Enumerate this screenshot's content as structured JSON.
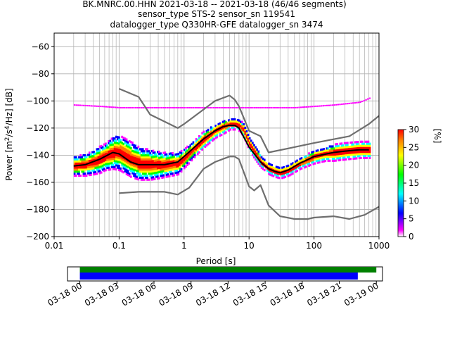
{
  "figure": {
    "title_lines": [
      "BK.MNRC.00.HHN   2021-03-18 -- 2021-03-18  (46/46 segments)",
      "sensor_type STS-2 sensor_sn 119541",
      "datalogger_type Q330HR-GFE datalogger_sn 3474"
    ]
  },
  "chart_data": [
    {
      "type": "heatmap",
      "title": "BK.MNRC.00.HHN   2021-03-18 -- 2021-03-18  (46/46 segments)",
      "xlabel": "Period [s]",
      "ylabel": "Power [m²/s⁴/Hz] [dB]",
      "x_scale": "log",
      "xlim": [
        0.01,
        1000
      ],
      "ylim": [
        -200,
        -50
      ],
      "x_ticks": [
        0.01,
        0.1,
        1,
        10,
        100,
        1000
      ],
      "x_tick_labels": [
        "0.01",
        "0.1",
        "1",
        "10",
        "100",
        "1000"
      ],
      "y_ticks": [
        -200,
        -180,
        -160,
        -140,
        -120,
        -100,
        -80,
        -60
      ],
      "y_tick_labels": [
        "−200",
        "−180",
        "−160",
        "−140",
        "−120",
        "−100",
        "−80",
        "−60"
      ],
      "grid": true,
      "colorbar": {
        "label": "[%]",
        "range": [
          0,
          30
        ],
        "ticks": [
          0,
          5,
          10,
          15,
          20,
          25,
          30
        ],
        "tick_labels": [
          "0",
          "5",
          "10",
          "15",
          "20",
          "25",
          "30"
        ],
        "colors": [
          "#ffffff",
          "#ff00ff",
          "#0000ff",
          "#00ffff",
          "#00ff00",
          "#ffff00",
          "#ff8000",
          "#ff0000"
        ]
      },
      "mean_curve": {
        "x": [
          0.02,
          0.03,
          0.05,
          0.08,
          0.1,
          0.15,
          0.2,
          0.3,
          0.5,
          0.8,
          1,
          2,
          3,
          4,
          5,
          6,
          7,
          10,
          15,
          20,
          25,
          30,
          40,
          60,
          100,
          200,
          300,
          500,
          700
        ],
        "y": [
          -148,
          -147,
          -143,
          -138,
          -139,
          -145,
          -147,
          -147,
          -147,
          -145,
          -141,
          -128,
          -122,
          -119,
          -118,
          -118,
          -120,
          -134,
          -145,
          -150,
          -152,
          -153,
          -151,
          -146,
          -141,
          -138,
          -137,
          -136,
          -136
        ]
      },
      "noise_models": [
        {
          "x": [
            0.1,
            0.2,
            0.3,
            0.8,
            1,
            3,
            5,
            6,
            7,
            10,
            15,
            20,
            40,
            100,
            350,
            700,
            1000
          ],
          "y": [
            -91,
            -97,
            -110,
            -120,
            -117,
            -100,
            -96,
            -99,
            -104,
            -122,
            -126,
            -138,
            -135,
            -131,
            -126,
            -117,
            -111
          ]
        },
        {
          "x": [
            0.1,
            0.2,
            0.3,
            0.5,
            0.8,
            1.2,
            2,
            3,
            5,
            6,
            7,
            10,
            12,
            15,
            20,
            30,
            50,
            80,
            100,
            200,
            350,
            600,
            1000
          ],
          "y": [
            -168,
            -167,
            -167,
            -167,
            -169,
            -164,
            -150,
            -145,
            -141,
            -141,
            -143,
            -163,
            -166,
            -162,
            -177,
            -185,
            -187,
            -187,
            -186,
            -185,
            -187,
            -184,
            -178
          ]
        }
      ],
      "density": {
        "x": [
          0.02,
          0.03,
          0.04,
          0.05,
          0.06,
          0.08,
          0.1,
          0.15,
          0.2,
          0.3,
          0.5,
          0.8,
          1,
          1.5,
          2,
          3,
          4,
          5,
          6,
          7,
          8,
          10,
          13,
          15,
          20,
          25,
          30,
          40,
          60,
          100,
          150,
          200,
          300,
          500,
          700
        ],
        "y": [
          -148,
          -147,
          -145,
          -143,
          -141,
          -138,
          -138,
          -143,
          -146,
          -147,
          -147,
          -146,
          -142,
          -134,
          -128,
          -122,
          -119,
          -117,
          -117,
          -118,
          -121,
          -132,
          -140,
          -145,
          -150,
          -152,
          -153,
          -151,
          -146,
          -141,
          -139,
          -138,
          -137,
          -136,
          -136
        ],
        "spread_db": [
          7,
          8,
          9,
          10,
          10,
          12,
          13,
          13,
          12,
          11,
          9,
          8,
          7,
          6,
          6,
          5,
          5,
          4,
          4,
          4,
          5,
          5,
          5,
          4,
          4,
          4,
          4,
          4,
          4,
          5,
          5,
          6,
          6,
          6,
          6
        ]
      },
      "outlier_line": {
        "x": [
          0.02,
          0.05,
          0.1,
          0.3,
          1,
          3,
          10,
          20,
          50,
          100,
          200,
          500,
          700
        ],
        "y": [
          -103,
          -104,
          -105,
          -105,
          -105,
          -105,
          -105,
          -105,
          -105,
          -104,
          -103,
          -101,
          -98
        ]
      }
    },
    {
      "type": "bar",
      "title": "",
      "xlabel": "",
      "ylabel": "",
      "xlim": [
        "2021-03-17 23:00",
        "2021-03-19 00:30"
      ],
      "x_ticks": [
        "2021-03-18 00:00",
        "2021-03-18 03:00",
        "2021-03-18 06:00",
        "2021-03-18 09:00",
        "2021-03-18 12:00",
        "2021-03-18 15:00",
        "2021-03-18 18:00",
        "2021-03-18 21:00",
        "2021-03-19 00:00"
      ],
      "x_tick_labels": [
        "03-18 00",
        "03-18 03",
        "03-18 06",
        "03-18 09",
        "03-18 12",
        "03-18 15",
        "03-18 18",
        "03-18 21",
        "03-19 00"
      ],
      "series": [
        {
          "start": "2021-03-18 00:00",
          "end": "2021-03-19 00:00",
          "color": "#008000"
        },
        {
          "start": "2021-03-18 00:00",
          "end": "2021-03-18 22:30",
          "color": "#0000ff"
        }
      ]
    }
  ]
}
